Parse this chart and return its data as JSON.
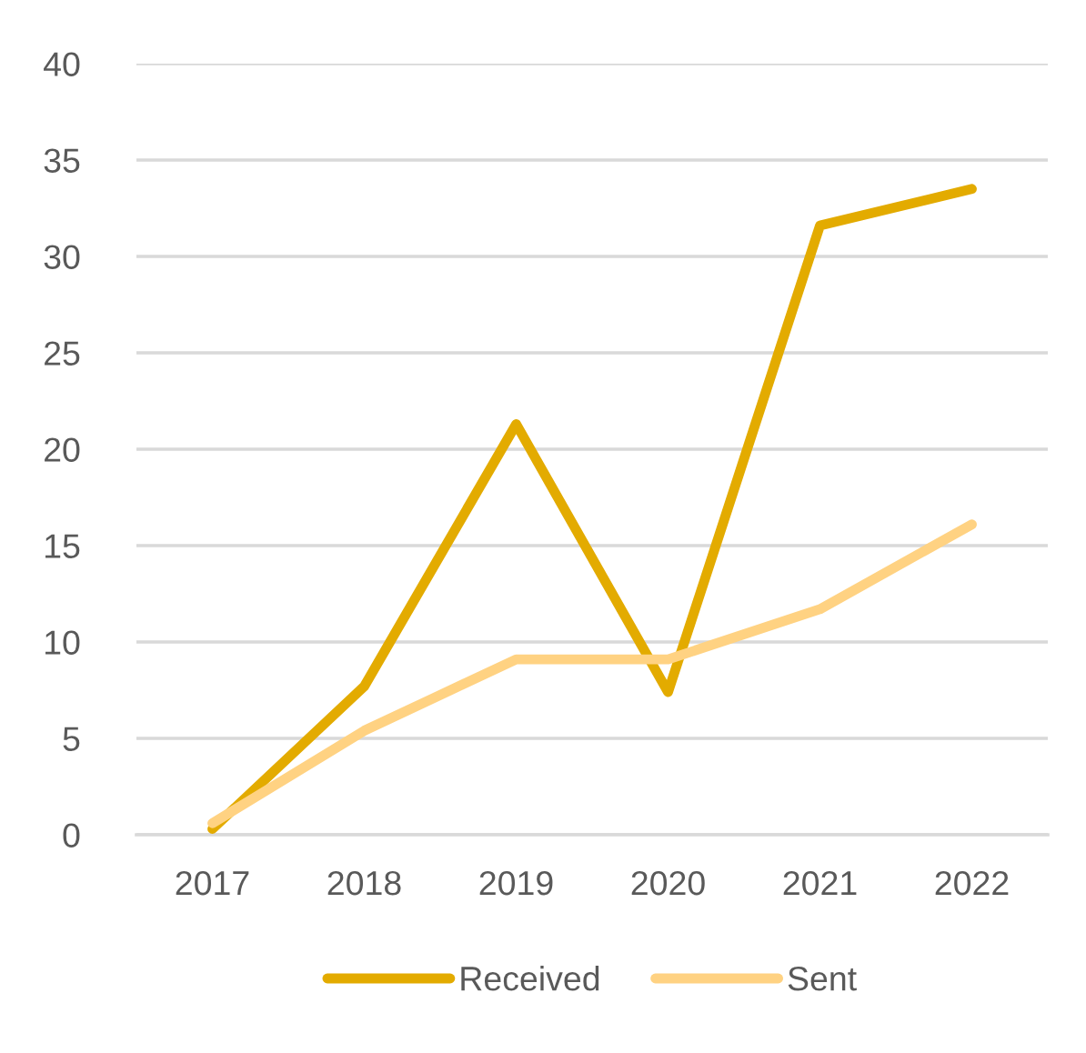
{
  "chart_data": {
    "type": "line",
    "categories": [
      "2017",
      "2018",
      "2019",
      "2020",
      "2021",
      "2022"
    ],
    "series": [
      {
        "name": "Received",
        "color": "#e3ab00",
        "values": [
          0.3,
          7.7,
          21.3,
          7.4,
          31.6,
          33.5
        ]
      },
      {
        "name": "Sent",
        "color": "#ffd282",
        "values": [
          0.6,
          5.4,
          9.1,
          9.1,
          11.7,
          16.1
        ]
      }
    ],
    "ylim": [
      0,
      40
    ],
    "yticks": [
      0,
      5,
      10,
      15,
      20,
      25,
      30,
      35,
      40
    ],
    "grid": "y",
    "legend": "bottom",
    "marker": "none",
    "line_style": "solid"
  }
}
